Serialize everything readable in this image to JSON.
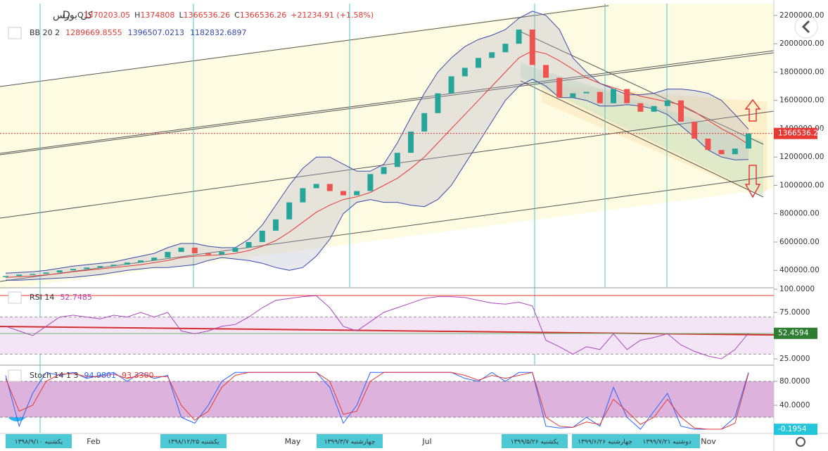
{
  "header": {
    "symbol": "کل بورس",
    "interval": "D",
    "ohlc": [
      {
        "label": "O",
        "value": 1370203.05
      },
      {
        "label": "H",
        "value": 1374808
      },
      {
        "label": "L",
        "value": 1366536.26
      },
      {
        "label": "C",
        "value": 1366536.26
      }
    ],
    "change": "+21234.91 (+1.58%)"
  },
  "chart_data": [
    {
      "type": "candlestick",
      "indicator": "BB 20 2",
      "up_color": "#26a69a",
      "down_color": "#ef5350",
      "values": [
        360000,
        370000,
        375000,
        385000,
        400000,
        410000,
        420000,
        430000,
        440000,
        455000,
        470000,
        490000,
        530000,
        560000,
        520000,
        510000,
        530000,
        560000,
        600000,
        680000,
        760000,
        880000,
        980000,
        1010000,
        960000,
        930000,
        960000,
        1080000,
        1130000,
        1230000,
        1380000,
        1510000,
        1650000,
        1770000,
        1830000,
        1900000,
        1940000,
        2000000,
        2100000,
        1850000,
        1760000,
        1620000,
        1650000,
        1660000,
        1580000,
        1680000,
        1580000,
        1520000,
        1560000,
        1600000,
        1450000,
        1330000,
        1250000,
        1220000,
        1260000,
        1366536.26
      ],
      "series": [
        {
          "color": "#e53935",
          "values": [
            350000,
            355000,
            360000,
            368000,
            378000,
            390000,
            400000,
            410000,
            420000,
            430000,
            440000,
            455000,
            470000,
            490000,
            500000,
            505000,
            510000,
            520000,
            540000,
            570000,
            610000,
            670000,
            740000,
            810000,
            860000,
            900000,
            920000,
            950000,
            1000000,
            1050000,
            1120000,
            1200000,
            1300000,
            1400000,
            1500000,
            1600000,
            1700000,
            1800000,
            1900000,
            1950000,
            1930000,
            1880000,
            1820000,
            1760000,
            1720000,
            1690000,
            1660000,
            1630000,
            1610000,
            1590000,
            1570000,
            1520000,
            1460000,
            1400000,
            1350000,
            1289669.8555
          ]
        },
        {
          "color": "#3949ab",
          "values": [
            380000,
            385000,
            390000,
            400000,
            415000,
            430000,
            440000,
            450000,
            460000,
            480000,
            500000,
            520000,
            560000,
            590000,
            590000,
            570000,
            560000,
            560000,
            620000,
            720000,
            860000,
            1000000,
            1120000,
            1200000,
            1200000,
            1150000,
            1100000,
            1100000,
            1150000,
            1300000,
            1480000,
            1650000,
            1800000,
            1900000,
            1980000,
            2030000,
            2060000,
            2100000,
            2180000,
            2230000,
            2200000,
            2100000,
            1900000,
            1800000,
            1720000,
            1680000,
            1640000,
            1640000,
            1650000,
            1680000,
            1680000,
            1670000,
            1650000,
            1600000,
            1500000,
            1396507.0213
          ]
        },
        {
          "color": "#3949ab",
          "values": [
            330000,
            330000,
            335000,
            340000,
            345000,
            350000,
            360000,
            370000,
            385000,
            400000,
            410000,
            420000,
            420000,
            430000,
            440000,
            470000,
            490000,
            480000,
            470000,
            450000,
            420000,
            400000,
            420000,
            500000,
            620000,
            800000,
            880000,
            900000,
            880000,
            880000,
            860000,
            850000,
            900000,
            1000000,
            1150000,
            1300000,
            1450000,
            1600000,
            1700000,
            1750000,
            1700000,
            1620000,
            1620000,
            1600000,
            1560000,
            1560000,
            1570000,
            1560000,
            1540000,
            1500000,
            1420000,
            1340000,
            1250000,
            1200000,
            1180000,
            1182832.6897
          ]
        }
      ],
      "ylim": [
        282000,
        2284000
      ],
      "yticks": [
        {
          "value": 400000,
          "label": "400000.00"
        },
        {
          "value": 600000,
          "label": "600000.00"
        },
        {
          "value": 800000,
          "label": "800000.00"
        },
        {
          "value": 1000000,
          "label": "1000000.00"
        },
        {
          "value": 1200000,
          "label": "1200000.00"
        },
        {
          "value": 1400000,
          "label": "1400000.00"
        },
        {
          "value": 1600000,
          "label": "1600000.00"
        },
        {
          "value": 1800000,
          "label": "1800000.00"
        },
        {
          "value": 2000000,
          "label": "2000000.00"
        },
        {
          "value": 2200000,
          "label": "2200000.00"
        }
      ],
      "marker": {
        "value": 1366536.26,
        "color": "#e53935"
      }
    },
    {
      "type": "line",
      "indicator": "RSI 14",
      "series": [
        {
          "color": "#ab47bc",
          "values": [
            60,
            55,
            50,
            60,
            70,
            72,
            70,
            68,
            72,
            70,
            75,
            70,
            75,
            55,
            52,
            55,
            60,
            62,
            70,
            80,
            88,
            90,
            92,
            93,
            80,
            60,
            55,
            65,
            75,
            80,
            85,
            90,
            92,
            92,
            91,
            88,
            85,
            84,
            86,
            82,
            45,
            38,
            30,
            38,
            35,
            52,
            35,
            45,
            48,
            52,
            40,
            33,
            28,
            25,
            35,
            52.7485
          ]
        }
      ],
      "ylim": [
        18.9,
        100.8
      ],
      "yticks": [
        {
          "value": 25,
          "label": "25.0000"
        },
        {
          "value": 75,
          "label": "75.0000"
        },
        {
          "value": 100,
          "label": "100.0000"
        }
      ],
      "marker": {
        "value": 52.4594,
        "color": "#2e7d32"
      }
    },
    {
      "type": "line",
      "indicator": "Stoch 14 1 3",
      "series": [
        {
          "color": "#2962ff",
          "values": [
            90,
            5,
            60,
            95,
            90,
            95,
            85,
            90,
            95,
            80,
            95,
            85,
            90,
            20,
            10,
            40,
            80,
            95,
            95,
            95,
            95,
            95,
            95,
            95,
            70,
            10,
            40,
            95,
            95,
            95,
            95,
            95,
            95,
            95,
            85,
            80,
            95,
            80,
            95,
            95,
            5,
            2,
            3,
            20,
            5,
            70,
            20,
            0,
            30,
            60,
            5,
            0,
            0,
            0,
            20,
            94.9801
          ]
        },
        {
          "color": "#e53935",
          "values": [
            85,
            30,
            40,
            80,
            92,
            93,
            88,
            88,
            92,
            85,
            90,
            88,
            88,
            40,
            15,
            30,
            70,
            90,
            95,
            95,
            95,
            95,
            95,
            95,
            80,
            25,
            30,
            80,
            95,
            95,
            95,
            95,
            95,
            95,
            90,
            82,
            90,
            85,
            90,
            95,
            20,
            5,
            3,
            12,
            8,
            50,
            30,
            8,
            20,
            50,
            20,
            2,
            0,
            0,
            10,
            93.33
          ],
          "last_label": "93.3300"
        }
      ],
      "ylim": [
        -5.9,
        105.9
      ],
      "yticks": [
        {
          "value": 40,
          "label": "40.0000"
        },
        {
          "value": 80,
          "label": "80.0000"
        }
      ],
      "marker": {
        "value": -0.1954,
        "color": "#26c6da"
      }
    }
  ],
  "time_axis": [
    "یکشنبه ۱۳۹۸/۹/۱۰",
    "Feb",
    "۱۳۹۸/۱۲/۲۵ یکشنبه",
    "May",
    "چهارشنبه ۱۳۹۹/۳/۷",
    "Jul",
    "یکشنبه ۱۳۹۹/۵/۲۶",
    "چهارشنبه ۱۳۹۹/۶/۲۶",
    "دوشنبه ۱۳۹۹/۷/۲۱",
    "Nov"
  ]
}
